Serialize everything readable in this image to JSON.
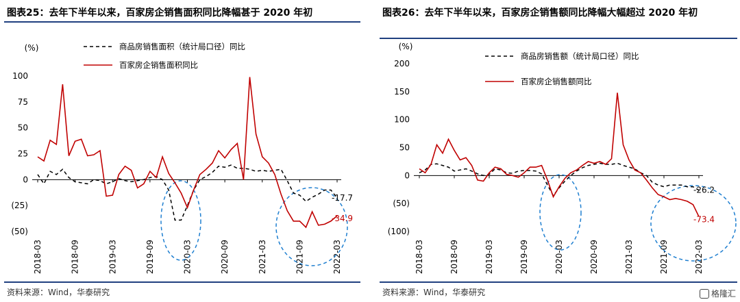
{
  "panels": [
    {
      "title": "图表25：去年下半年以来，百家房企销售面积同比降幅甚于 2020 年初",
      "source": "资料来源：Wind，华泰研究"
    },
    {
      "title": "图表26：去年下半年以来，百家房企销售额同比降幅大幅超过 2020 年初",
      "source": "资料来源：Wind，华泰研究"
    }
  ],
  "watermark": "格隆汇",
  "chart_data": [
    {
      "type": "line",
      "unit_label": "(%)",
      "ylim": [
        -50,
        100
      ],
      "yticks": [
        100,
        75,
        50,
        25,
        0,
        -25,
        -50
      ],
      "ytick_labels": [
        "100",
        "75",
        "50",
        "25",
        "0",
        "(25)",
        "(50)"
      ],
      "categories": [
        "2018-03",
        "2018-04",
        "2018-05",
        "2018-06",
        "2018-07",
        "2018-08",
        "2018-09",
        "2018-10",
        "2018-11",
        "2018-12",
        "2019-01",
        "2019-02",
        "2019-03",
        "2019-04",
        "2019-05",
        "2019-06",
        "2019-07",
        "2019-08",
        "2019-09",
        "2019-10",
        "2019-11",
        "2019-12",
        "2020-01",
        "2020-02",
        "2020-03",
        "2020-04",
        "2020-05",
        "2020-06",
        "2020-07",
        "2020-08",
        "2020-09",
        "2020-10",
        "2020-11",
        "2020-12",
        "2021-01",
        "2021-02",
        "2021-03",
        "2021-04",
        "2021-05",
        "2021-06",
        "2021-07",
        "2021-08",
        "2021-09",
        "2021-10",
        "2021-11",
        "2021-12",
        "2022-01",
        "2022-02",
        "2022-03"
      ],
      "xtick_labels": [
        "2018-03",
        "2018-09",
        "2019-03",
        "2019-09",
        "2020-03",
        "2020-09",
        "2021-03",
        "2021-09",
        "2022-03"
      ],
      "series": [
        {
          "name": "商品房销售面积（统计局口径）同比",
          "style": "dashed",
          "color": "#000000",
          "values": [
            5,
            -4,
            8,
            5,
            10,
            2,
            -2,
            -3,
            -4,
            0,
            -1,
            -4,
            -2,
            1,
            -1,
            -2,
            -1,
            0,
            2,
            3,
            0,
            -10,
            -39,
            -39,
            -25,
            -10,
            0,
            3,
            7,
            13,
            12,
            14,
            11,
            11,
            10,
            8,
            9,
            8,
            9,
            10,
            -1,
            -13,
            -15,
            -21,
            -17,
            -14,
            -10,
            -10,
            -17.7
          ],
          "end_label": "-17.7"
        },
        {
          "name": "百家房企销售面积同比",
          "style": "solid",
          "color": "#c00000",
          "values": [
            22,
            18,
            38,
            34,
            92,
            23,
            37,
            39,
            23,
            24,
            28,
            -16,
            -15,
            5,
            13,
            9,
            -8,
            -4,
            8,
            2,
            22,
            6,
            -3,
            -13,
            -27,
            -10,
            5,
            10,
            16,
            28,
            21,
            29,
            35,
            0,
            99,
            44,
            22,
            16,
            5,
            -14,
            -30,
            -40,
            -40,
            -46,
            -31,
            -44,
            -43,
            -40,
            -34.9
          ],
          "end_label": "-34.9"
        }
      ]
    },
    {
      "type": "line",
      "unit_label": "(%)",
      "ylim": [
        -100,
        200
      ],
      "yticks": [
        200,
        150,
        100,
        50,
        0,
        -50,
        -100
      ],
      "ytick_labels": [
        "200",
        "150",
        "100",
        "50",
        "0",
        "(50)",
        "(100)"
      ],
      "categories": [
        "2018-03",
        "2018-04",
        "2018-05",
        "2018-06",
        "2018-07",
        "2018-08",
        "2018-09",
        "2018-10",
        "2018-11",
        "2018-12",
        "2019-01",
        "2019-02",
        "2019-03",
        "2019-04",
        "2019-05",
        "2019-06",
        "2019-07",
        "2019-08",
        "2019-09",
        "2019-10",
        "2019-11",
        "2019-12",
        "2020-01",
        "2020-02",
        "2020-03",
        "2020-04",
        "2020-05",
        "2020-06",
        "2020-07",
        "2020-08",
        "2020-09",
        "2020-10",
        "2020-11",
        "2020-12",
        "2021-01",
        "2021-02",
        "2021-03",
        "2021-04",
        "2021-05",
        "2021-06",
        "2021-07",
        "2021-08",
        "2021-09",
        "2021-10",
        "2021-11",
        "2021-12",
        "2022-01",
        "2022-02",
        "2022-03"
      ],
      "xtick_labels": [
        "2018-03",
        "2018-09",
        "2019-03",
        "2019-09",
        "2020-03",
        "2020-09",
        "2021-03",
        "2021-09",
        "2022-03"
      ],
      "series": [
        {
          "name": "商品房销售额（统计局口径）同比",
          "style": "dashed",
          "color": "#000000",
          "values": [
            5,
            10,
            20,
            21,
            18,
            15,
            8,
            10,
            12,
            8,
            3,
            0,
            2,
            12,
            10,
            5,
            4,
            8,
            9,
            9,
            8,
            3,
            -17,
            -36,
            -22,
            -10,
            0,
            8,
            14,
            18,
            20,
            22,
            20,
            20,
            22,
            18,
            15,
            12,
            5,
            0,
            -12,
            -17,
            -20,
            -17,
            -17,
            -17,
            -20,
            -20,
            -26.2
          ],
          "end_label": "-26.2"
        },
        {
          "name": "百家房企销售额同比",
          "style": "solid",
          "color": "#c00000",
          "values": [
            12,
            5,
            20,
            55,
            40,
            65,
            45,
            28,
            32,
            18,
            -8,
            -10,
            5,
            15,
            12,
            2,
            0,
            -3,
            5,
            15,
            15,
            18,
            -8,
            -38,
            -20,
            -5,
            5,
            10,
            18,
            25,
            22,
            25,
            20,
            30,
            148,
            55,
            28,
            10,
            5,
            -8,
            -22,
            -34,
            -38,
            -43,
            -41,
            -43,
            -46,
            -52,
            -73.4
          ],
          "end_label": "-73.4"
        }
      ]
    }
  ]
}
